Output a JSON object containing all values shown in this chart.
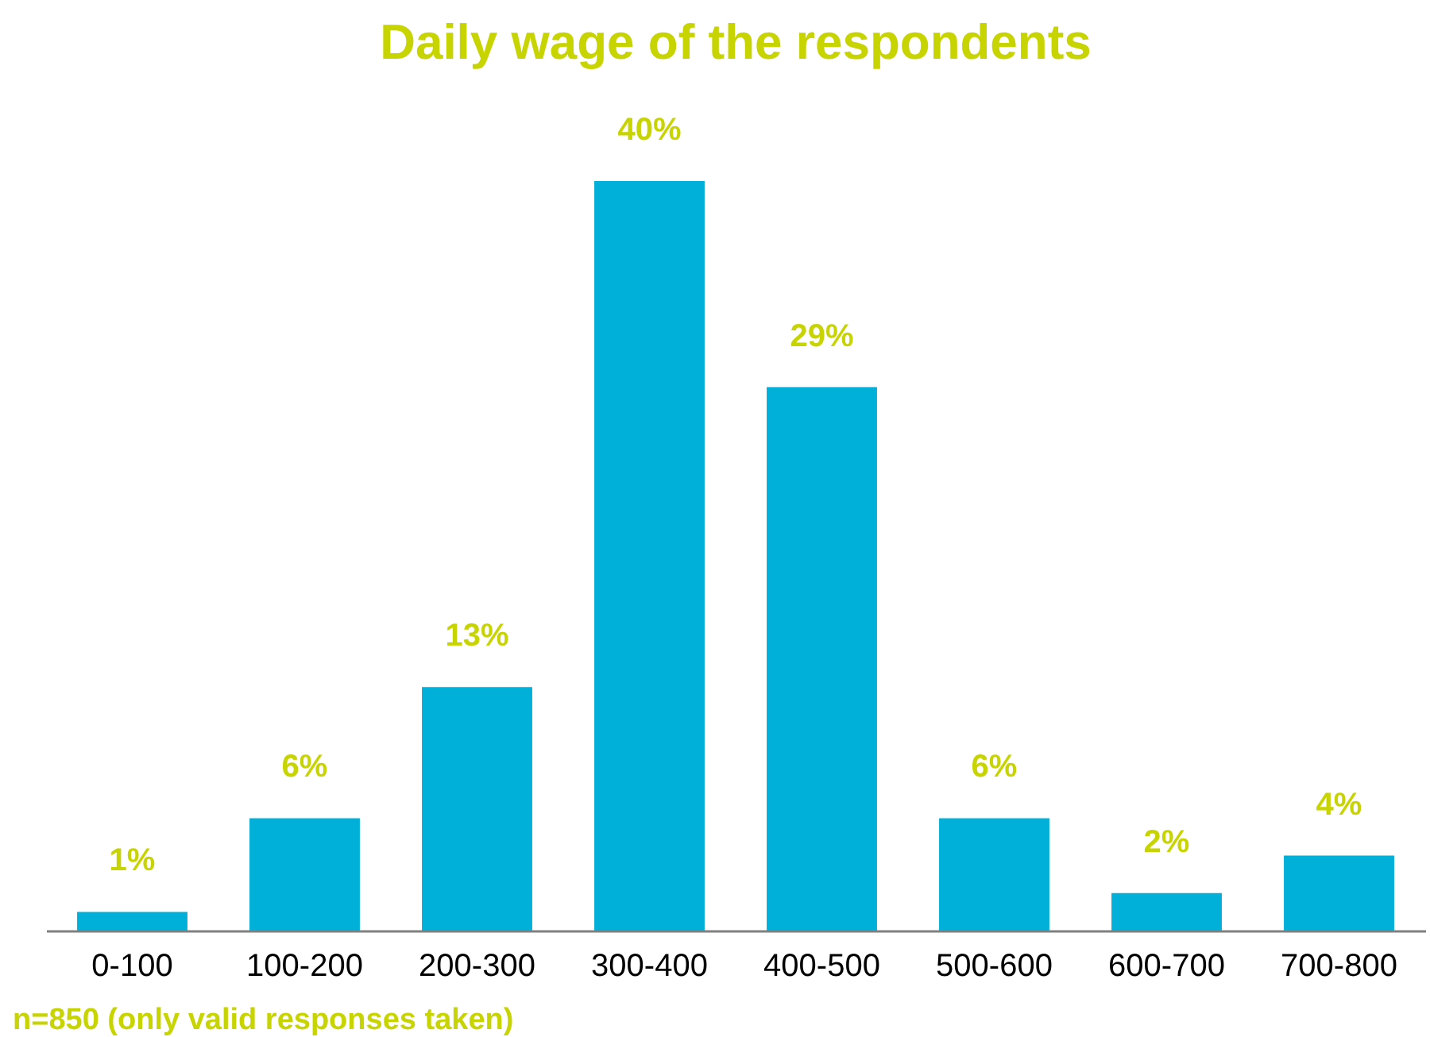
{
  "chart_data": {
    "type": "bar",
    "title": "Daily wage of the respondents",
    "categories": [
      "0-100",
      "100-200",
      "200-300",
      "300-400",
      "400-500",
      "500-600",
      "600-700",
      "700-800"
    ],
    "values": [
      1,
      6,
      13,
      40,
      29,
      6,
      2,
      4
    ],
    "value_labels": [
      "1%",
      "6%",
      "13%",
      "40%",
      "29%",
      "6%",
      "2%",
      "4%"
    ],
    "color": "#00b0d8",
    "annotations": [
      "n=850 (only valid responses taken)"
    ]
  }
}
